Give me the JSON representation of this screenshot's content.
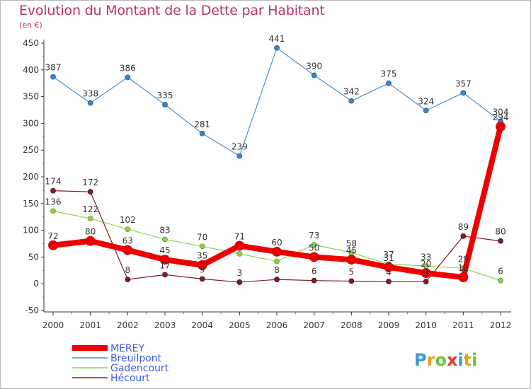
{
  "title": "Evolution du Montant de la Dette par Habitant",
  "unit_label": "(en €)",
  "brand": "Proxiti",
  "chart_data": {
    "type": "line",
    "x": [
      "2000",
      "2001",
      "2002",
      "2003",
      "2004",
      "2005",
      "2006",
      "2007",
      "2008",
      "2009",
      "2010",
      "2011",
      "2012"
    ],
    "ylim": [
      -50,
      450
    ],
    "yticks": [
      -50,
      0,
      50,
      100,
      150,
      200,
      250,
      300,
      350,
      400,
      450
    ],
    "grid": false,
    "legend_position": "bottom-left",
    "series": [
      {
        "name": "Breuilpont",
        "color": "#4a90c8",
        "values": [
          387,
          338,
          386,
          335,
          281,
          239,
          441,
          390,
          342,
          375,
          324,
          357,
          304
        ]
      },
      {
        "name": "Gadencourt",
        "color": "#8fd14f",
        "values": [
          136,
          122,
          102,
          83,
          70,
          56,
          42,
          73,
          58,
          37,
          33,
          29,
          6
        ]
      },
      {
        "name": "Hécourt",
        "color": "#7a1f2b",
        "values": [
          174,
          172,
          8,
          17,
          9,
          3,
          8,
          6,
          5,
          4,
          4,
          89,
          80
        ]
      },
      {
        "name": "MEREY",
        "color": "#ee0000",
        "values": [
          72,
          80,
          63,
          45,
          35,
          71,
          60,
          50,
          45,
          31,
          20,
          12,
          294
        ]
      }
    ],
    "data_labels": {
      "Breuilpont": [
        "387",
        "338",
        "386",
        "335",
        "281",
        "239",
        "441",
        "390",
        "342",
        "375",
        "324",
        "357",
        "304"
      ],
      "Gadencourt": [
        "136",
        "122",
        "102",
        "83",
        "70",
        "",
        "",
        "73",
        "58",
        "37",
        "33",
        "29",
        "6"
      ],
      "Hécourt": [
        "174",
        "172",
        "8",
        "17",
        "9",
        "3",
        "8",
        "6",
        "5",
        "4",
        "4",
        "89",
        "80"
      ],
      "MEREY": [
        "72",
        "80",
        "63",
        "45",
        "35",
        "71",
        "60",
        "50",
        "45",
        "31",
        "20",
        "12",
        "294"
      ]
    },
    "legend_order": [
      "MEREY",
      "Breuilpont",
      "Gadencourt",
      "Hécourt"
    ]
  }
}
